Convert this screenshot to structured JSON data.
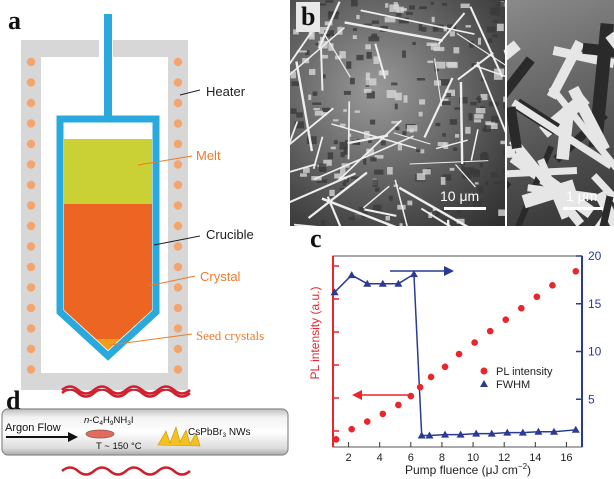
{
  "panels": {
    "a": {
      "label": "a",
      "callouts": {
        "heater": "Heater",
        "melt": "Melt",
        "crucible": "Crucible",
        "crystal": "Crystal",
        "seed": "Seed crystals"
      },
      "colors": {
        "wall": "#d7d7d7",
        "heater_dot": "#f3a56d",
        "crucible": "#2aa9dd",
        "melt": "#c9d135",
        "crystal": "#ec6523",
        "seed": "#f59c1a",
        "callout_orange": "#ee7b2a"
      }
    },
    "b": {
      "label": "b",
      "scale_left": "10 μm",
      "scale_right": "1 μm"
    },
    "c": {
      "label": "c",
      "xlabel_main": "Pump fluence (μJ cm",
      "xlabel_sup": "−2",
      "xlabel_end": ")",
      "ylabel_left": "PL intensity (a.u.)",
      "legend": {
        "pl": "PL intensity",
        "fwhm": "FWHM"
      }
    },
    "d": {
      "label": "d",
      "flow": "Argon Flow",
      "precursor_a": "n",
      "precursor_b": "-C",
      "precursor_c": "4",
      "precursor_d": "H",
      "precursor_e": "9",
      "precursor_f": "NH",
      "precursor_g": "3",
      "precursor_h": "I",
      "temp": "T ~ 150 °C",
      "product_a": "CsPbBr",
      "product_b": "3",
      "product_c": " NWs"
    }
  },
  "chart_data": {
    "type": "scatter",
    "xlim": [
      1,
      17
    ],
    "x_ticks": [
      2,
      4,
      6,
      8,
      10,
      12,
      14,
      16
    ],
    "ylim_right": [
      0,
      20
    ],
    "y_ticks_right": [
      5,
      10,
      15,
      20
    ],
    "series": [
      {
        "name": "PL intensity",
        "color": "#e8262c",
        "axis": "left",
        "x": [
          1.2,
          2.2,
          3.2,
          4.2,
          5.2,
          6.0,
          6.6,
          7.3,
          8.2,
          9.1,
          10.1,
          11.1,
          12.1,
          13.1,
          14.1,
          15.1,
          16.6
        ],
        "y": [
          0.6,
          1.4,
          2.0,
          2.6,
          3.3,
          4.0,
          4.7,
          5.5,
          6.3,
          7.3,
          8.2,
          9.1,
          10.0,
          10.9,
          11.8,
          12.7,
          13.8
        ]
      },
      {
        "name": "FWHM",
        "color": "#2b3a94",
        "axis": "right",
        "x": [
          1.1,
          2.2,
          3.2,
          4.2,
          5.2,
          6.2,
          6.7,
          7.2,
          8.2,
          9.2,
          10.2,
          11.2,
          12.2,
          13.2,
          14.2,
          15.2,
          16.6
        ],
        "y": [
          16.2,
          18.0,
          17.1,
          17.1,
          17.1,
          18.1,
          1.2,
          1.2,
          1.3,
          1.3,
          1.4,
          1.4,
          1.5,
          1.5,
          1.6,
          1.6,
          1.8
        ]
      }
    ]
  }
}
